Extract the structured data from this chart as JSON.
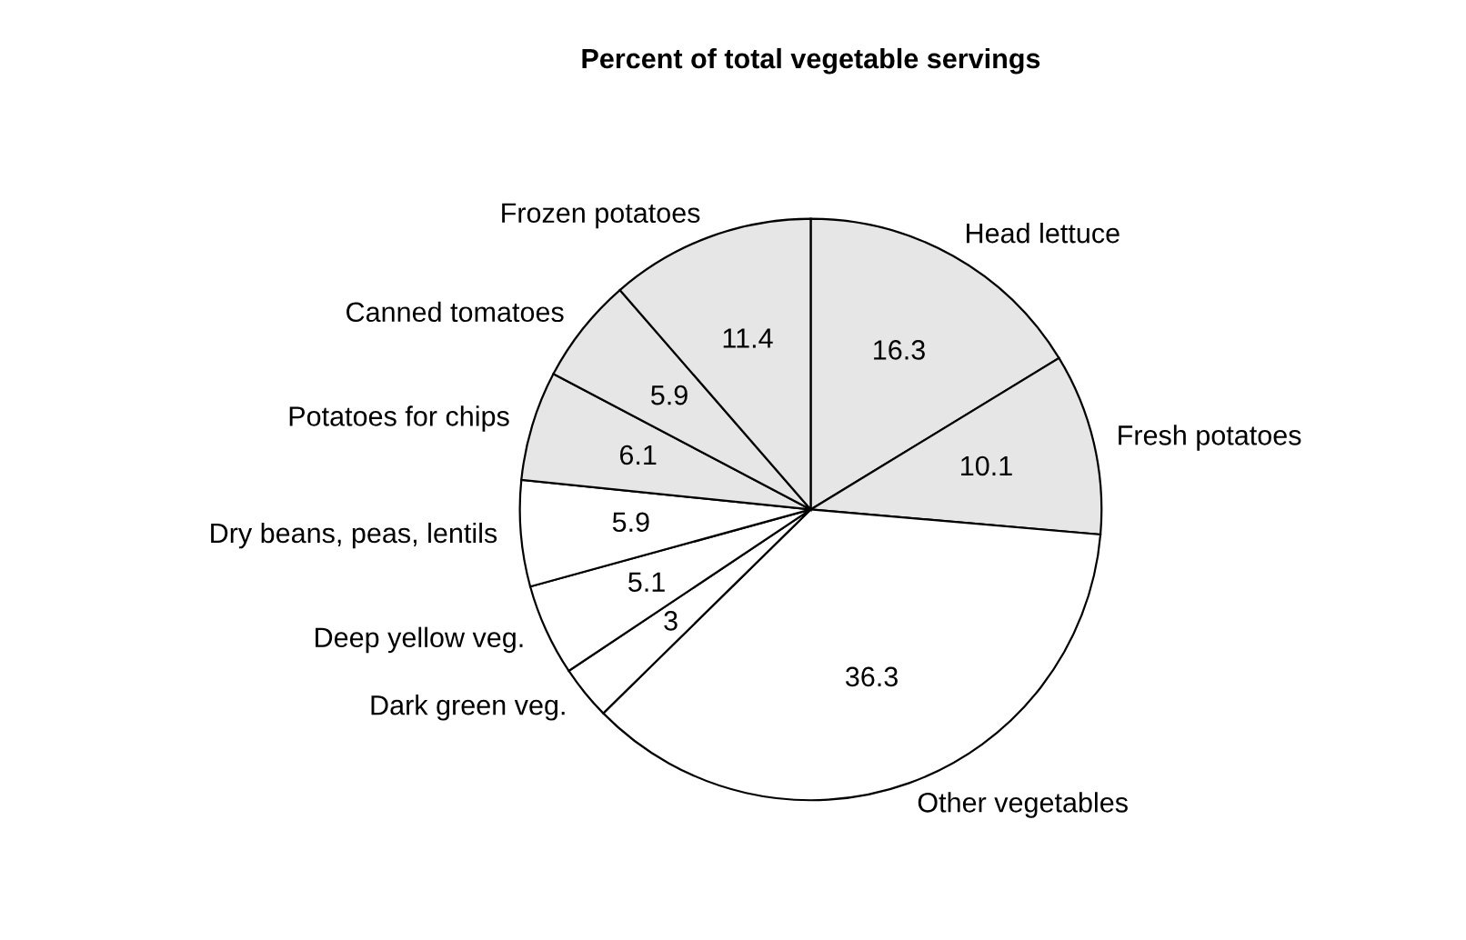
{
  "chart_data": {
    "type": "pie",
    "title": "Percent of total vegetable servings",
    "categories": [
      "Head lettuce",
      "Fresh potatoes",
      "Other vegetables",
      "Dark green veg.",
      "Deep yellow veg.",
      "Dry beans, peas, lentils",
      "Potatoes for chips",
      "Canned tomatoes",
      "Frozen potatoes"
    ],
    "values": [
      16.3,
      10.1,
      36.3,
      3,
      5.1,
      5.9,
      6.1,
      5.9,
      11.4
    ],
    "colors": [
      "#e6e6e6",
      "#e6e6e6",
      "#ffffff",
      "#ffffff",
      "#ffffff",
      "#ffffff",
      "#e6e6e6",
      "#e6e6e6",
      "#e6e6e6"
    ],
    "data_labels": true,
    "legend": false
  }
}
